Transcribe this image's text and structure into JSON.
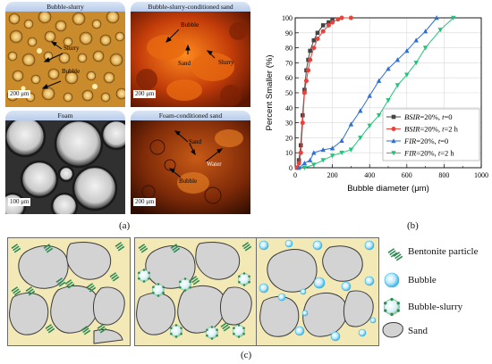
{
  "panel_a": {
    "tabs": [
      "Bubble-slurry",
      "Bubble-slurry-conditioned sand",
      "Foam",
      "Foam-conditioned sand"
    ],
    "labels": {
      "bs_slurry": "Slurry",
      "bs_bubble": "Bubble",
      "bsc_bubble": "Bubble",
      "bsc_sand": "Sand",
      "bsc_slurry": "Slurry",
      "fc_sand": "Sand",
      "fc_water": "Water",
      "fc_bubble": "Bubble"
    },
    "scales": [
      "200 μm",
      "200 μm",
      "100 μm",
      "200 μm"
    ],
    "caption": "(a)"
  },
  "panel_b": {
    "caption": "(b)"
  },
  "panel_c": {
    "legend": [
      "Bentonite particle",
      "Bubble",
      "Bubble-slurry",
      "Sand"
    ],
    "caption": "(c)"
  },
  "chart_data": {
    "type": "line",
    "xlabel": "Bubble diameter (μm)",
    "ylabel": "Percent Smaller (%)",
    "xlim": [
      0,
      1000
    ],
    "ylim": [
      0,
      100
    ],
    "xticks": [
      "0",
      "200",
      "400",
      "600",
      "800",
      "1000"
    ],
    "yticks": [
      "0",
      "10",
      "20",
      "30",
      "40",
      "50",
      "60",
      "70",
      "80",
      "90",
      "100"
    ],
    "grid": true,
    "legend_position": "bottom-right",
    "series": [
      {
        "name_parts": [
          "BSIR",
          "=20%, ",
          "t",
          "=0"
        ],
        "color": "#444444",
        "marker": "square",
        "x": [
          10,
          20,
          30,
          40,
          50,
          60,
          70,
          80,
          100,
          120,
          150,
          180,
          200
        ],
        "y": [
          0,
          5,
          15,
          35,
          52,
          65,
          72,
          78,
          85,
          90,
          95,
          97,
          99
        ]
      },
      {
        "name_parts": [
          "BSIR",
          "=20%, ",
          "t",
          "=2 h"
        ],
        "color": "#e8413a",
        "marker": "circle",
        "x": [
          10,
          20,
          30,
          40,
          50,
          60,
          70,
          80,
          100,
          120,
          150,
          180,
          200,
          230,
          250,
          300
        ],
        "y": [
          0,
          3,
          10,
          30,
          50,
          58,
          65,
          72,
          80,
          86,
          91,
          95,
          97,
          99,
          100,
          100
        ]
      },
      {
        "name_parts": [
          "FIR",
          "=20%, ",
          "t",
          "=0"
        ],
        "color": "#2f6fd6",
        "marker": "triangle-up",
        "x": [
          20,
          50,
          80,
          100,
          150,
          200,
          250,
          300,
          350,
          400,
          450,
          500,
          550,
          600,
          650,
          700,
          760
        ],
        "y": [
          0,
          3,
          5,
          10,
          12,
          13,
          18,
          29,
          38,
          48,
          58,
          66,
          72,
          78,
          85,
          91,
          100
        ]
      },
      {
        "name_parts": [
          "FIR",
          "=20%, ",
          "t",
          "=2 h"
        ],
        "color": "#22c47a",
        "marker": "triangle-down",
        "x": [
          50,
          100,
          150,
          200,
          250,
          300,
          350,
          400,
          450,
          500,
          550,
          600,
          650,
          700,
          780,
          850
        ],
        "y": [
          0,
          2,
          5,
          8,
          10,
          12,
          20,
          28,
          35,
          45,
          55,
          62,
          70,
          80,
          92,
          100
        ]
      }
    ]
  }
}
